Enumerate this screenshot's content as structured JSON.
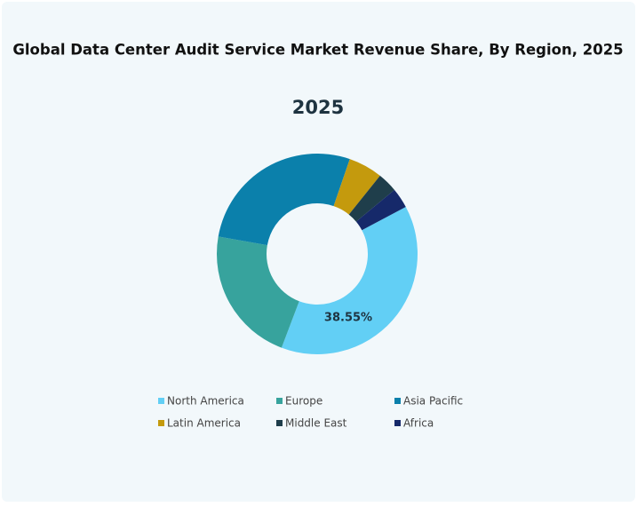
{
  "chart_data": {
    "type": "donut",
    "title": "Global Data Center Audit Service Market Revenue Share, By Region, 2025",
    "subtitle": "2025",
    "categories": [
      "North America",
      "Europe",
      "Asia Pacific",
      "Latin America",
      "Middle East",
      "Africa"
    ],
    "values": [
      38.55,
      22,
      27.5,
      5.5,
      3.2,
      3.25
    ],
    "value_labels": [
      "38.55%",
      null,
      null,
      null,
      null,
      null
    ],
    "colors": [
      "#62cff5",
      "#37a39d",
      "#0b80ab",
      "#c49a0d",
      "#1f3e4b",
      "#16296a"
    ]
  }
}
